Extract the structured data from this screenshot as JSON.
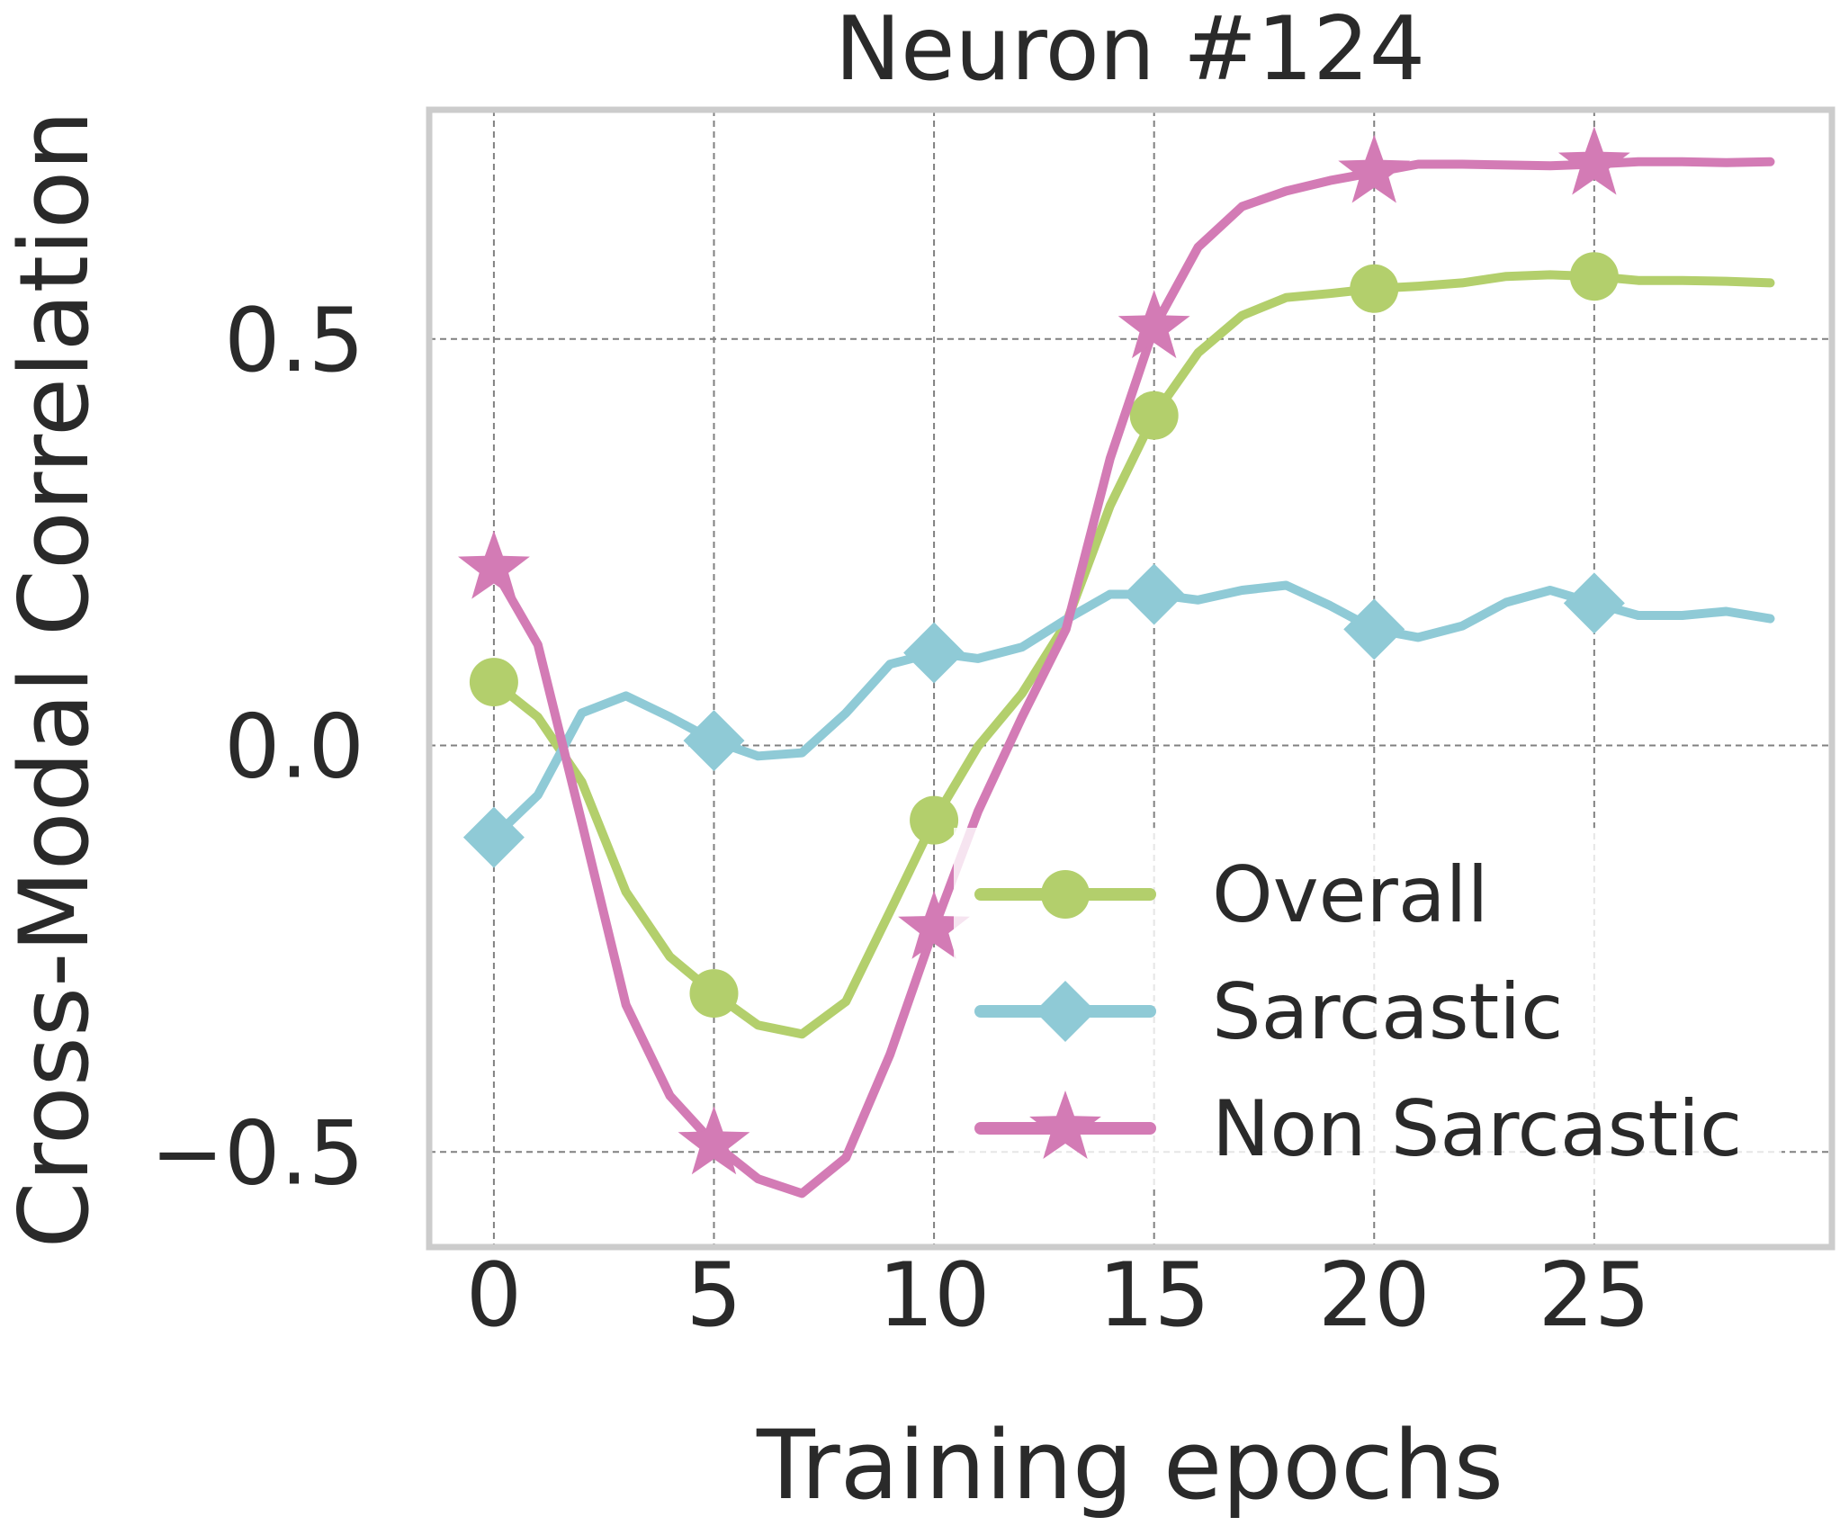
{
  "chart_data": {
    "type": "line",
    "title": "Neuron #124",
    "xlabel": "Training epochs",
    "ylabel": "Cross-Modal Correlation",
    "xlim": [
      -1.47,
      30.4
    ],
    "ylim": [
      -0.617,
      0.782
    ],
    "xticks": [
      0,
      5,
      10,
      15,
      20,
      25
    ],
    "xtick_labels": [
      "0",
      "5",
      "10",
      "15",
      "20",
      "25"
    ],
    "yticks": [
      -0.5,
      0.0,
      0.5
    ],
    "ytick_labels": [
      "−0.5",
      "0.0",
      "0.5"
    ],
    "grid": true,
    "legend_position": "lower-right",
    "marker_every": 5,
    "x": [
      0,
      1,
      2,
      3,
      4,
      5,
      6,
      7,
      8,
      9,
      10,
      11,
      12,
      13,
      14,
      15,
      16,
      17,
      18,
      19,
      20,
      21,
      22,
      23,
      24,
      25,
      26,
      27,
      28,
      29
    ],
    "series": [
      {
        "name": "Overall",
        "color": "#b3cf6c",
        "marker": "circle",
        "values": [
          0.078,
          0.035,
          -0.045,
          -0.18,
          -0.26,
          -0.305,
          -0.344,
          -0.355,
          -0.315,
          -0.204,
          -0.092,
          -0.001,
          0.064,
          0.15,
          0.295,
          0.406,
          0.483,
          0.529,
          0.551,
          0.556,
          0.562,
          0.565,
          0.569,
          0.577,
          0.579,
          0.577,
          0.572,
          0.572,
          0.571,
          0.569
        ]
      },
      {
        "name": "Sarcastic",
        "color": "#8fcad6",
        "marker": "diamond",
        "values": [
          -0.113,
          -0.061,
          0.04,
          0.061,
          0.035,
          0.006,
          -0.013,
          -0.009,
          0.04,
          0.1,
          0.114,
          0.107,
          0.121,
          0.155,
          0.186,
          0.186,
          0.179,
          0.191,
          0.197,
          0.172,
          0.143,
          0.133,
          0.147,
          0.176,
          0.191,
          0.175,
          0.16,
          0.16,
          0.165,
          0.156
        ]
      },
      {
        "name": "Non Sarcastic",
        "color": "#d37bb5",
        "marker": "star",
        "values": [
          0.218,
          0.124,
          -0.095,
          -0.319,
          -0.431,
          -0.49,
          -0.533,
          -0.551,
          -0.507,
          -0.38,
          -0.225,
          -0.081,
          0.035,
          0.143,
          0.353,
          0.514,
          0.613,
          0.663,
          0.682,
          0.695,
          0.705,
          0.715,
          0.715,
          0.714,
          0.713,
          0.715,
          0.718,
          0.718,
          0.717,
          0.718
        ]
      }
    ]
  }
}
